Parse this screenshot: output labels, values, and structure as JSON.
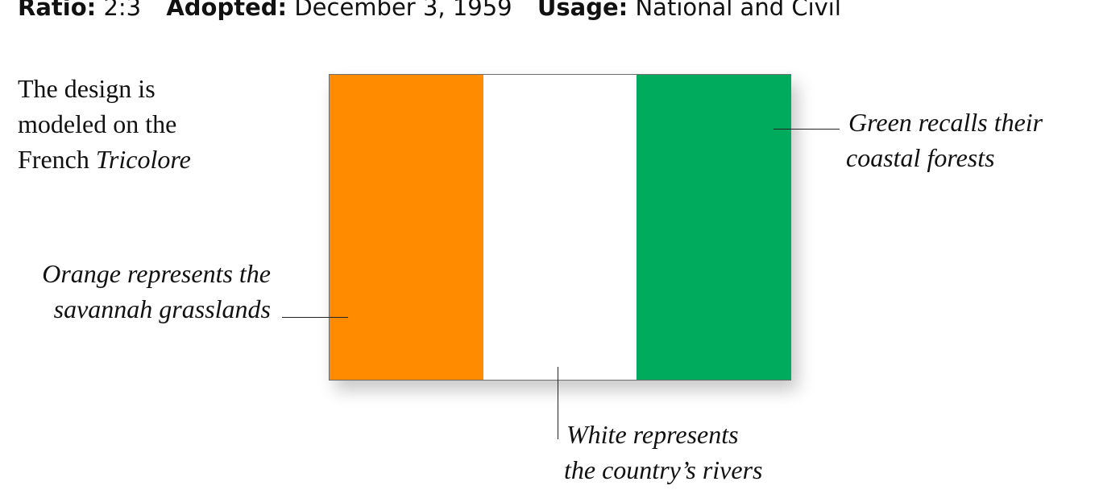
{
  "header": {
    "fields": [
      {
        "label": "Ratio:",
        "value": "2:3"
      },
      {
        "label": "Adopted:",
        "value": "December 3, 1959"
      },
      {
        "label": "Usage:",
        "value": "National and Civil"
      }
    ]
  },
  "note": {
    "lines": [
      "The design is",
      "modeled on the",
      "French"
    ],
    "emphasis": "Tricolore"
  },
  "annotations": {
    "orange": {
      "lines": [
        "Orange represents the",
        "savannah grasslands"
      ]
    },
    "green": {
      "lines": [
        "Green recalls their",
        "coastal forests"
      ]
    },
    "white": {
      "lines": [
        "White represents",
        "the country’s rivers"
      ]
    }
  }
}
